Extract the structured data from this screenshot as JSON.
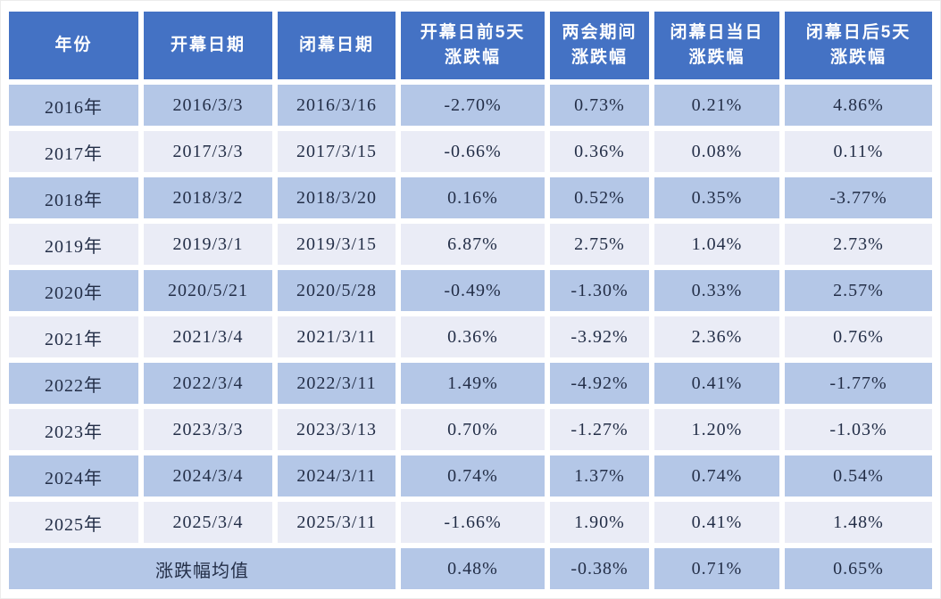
{
  "chart_data": {
    "type": "table",
    "columns": [
      {
        "l1": "年份",
        "l2": ""
      },
      {
        "l1": "开幕日期",
        "l2": ""
      },
      {
        "l1": "闭幕日期",
        "l2": ""
      },
      {
        "l1": "开幕日前5天",
        "l2": "涨跌幅"
      },
      {
        "l1": "两会期间",
        "l2": "涨跌幅"
      },
      {
        "l1": "闭幕日当日",
        "l2": "涨跌幅"
      },
      {
        "l1": "闭幕日后5天",
        "l2": "涨跌幅"
      }
    ],
    "rows": [
      [
        "2016年",
        "2016/3/3",
        "2016/3/16",
        "-2.70%",
        "0.73%",
        "0.21%",
        "4.86%"
      ],
      [
        "2017年",
        "2017/3/3",
        "2017/3/15",
        "-0.66%",
        "0.36%",
        "0.08%",
        "0.11%"
      ],
      [
        "2018年",
        "2018/3/2",
        "2018/3/20",
        "0.16%",
        "0.52%",
        "0.35%",
        "-3.77%"
      ],
      [
        "2019年",
        "2019/3/1",
        "2019/3/15",
        "6.87%",
        "2.75%",
        "1.04%",
        "2.73%"
      ],
      [
        "2020年",
        "2020/5/21",
        "2020/5/28",
        "-0.49%",
        "-1.30%",
        "0.33%",
        "2.57%"
      ],
      [
        "2021年",
        "2021/3/4",
        "2021/3/11",
        "0.36%",
        "-3.92%",
        "2.36%",
        "0.76%"
      ],
      [
        "2022年",
        "2022/3/4",
        "2022/3/11",
        "1.49%",
        "-4.92%",
        "0.41%",
        "-1.77%"
      ],
      [
        "2023年",
        "2023/3/3",
        "2023/3/13",
        "0.70%",
        "-1.27%",
        "1.20%",
        "-1.03%"
      ],
      [
        "2024年",
        "2024/3/4",
        "2024/3/11",
        "0.74%",
        "1.37%",
        "0.74%",
        "0.54%"
      ],
      [
        "2025年",
        "2025/3/4",
        "2025/3/11",
        "-1.66%",
        "1.90%",
        "0.41%",
        "1.48%"
      ]
    ],
    "summary": {
      "label": "涨跌幅均值",
      "values": [
        "0.48%",
        "-0.38%",
        "0.71%",
        "0.65%"
      ]
    }
  },
  "colors": {
    "header_bg": "#4472c4",
    "header_text": "#ffffff",
    "row_dark": "#b4c7e7",
    "row_light": "#eaecf6",
    "cell_text": "#232e47",
    "gap": "#ffffff"
  }
}
